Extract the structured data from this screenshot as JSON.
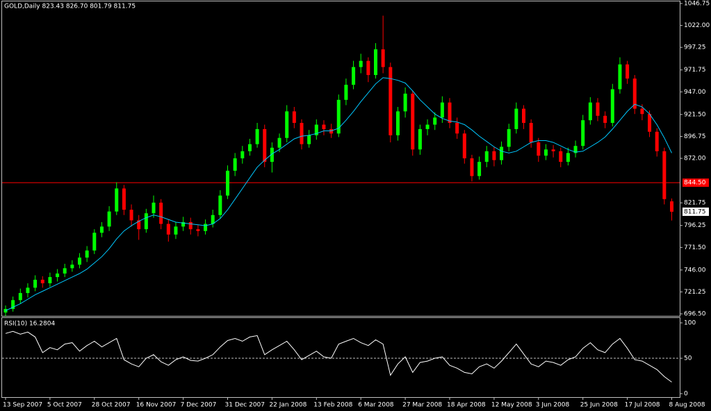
{
  "chart_data": [
    {
      "type": "candlestick",
      "title": "GOLD,Daily  823.43 826.70 801.79 811.75",
      "categories": [
        "13 Sep 2007",
        null,
        null,
        null,
        null,
        null,
        "5 Oct 2007",
        null,
        null,
        null,
        null,
        null,
        "28 Oct 2007",
        null,
        null,
        null,
        null,
        null,
        "16 Nov 2007",
        null,
        null,
        null,
        null,
        null,
        "7 Dec 2007",
        null,
        null,
        null,
        null,
        null,
        "31 Dec 2007",
        null,
        null,
        null,
        null,
        null,
        "22 Jan 2008",
        null,
        null,
        null,
        null,
        null,
        "13 Feb 2008",
        null,
        null,
        null,
        null,
        null,
        "6 Mar 2008",
        null,
        null,
        null,
        null,
        null,
        "27 Mar 2008",
        null,
        null,
        null,
        null,
        null,
        "18 Apr 2008",
        null,
        null,
        null,
        null,
        null,
        "12 May 2008",
        null,
        null,
        null,
        null,
        null,
        "3 Jun 2008",
        null,
        null,
        null,
        null,
        null,
        "25 Jun 2008",
        null,
        null,
        null,
        null,
        null,
        "17 Jul 2008",
        null,
        null,
        null,
        null,
        null,
        "8 Aug 2008"
      ],
      "open": [
        698,
        702,
        712,
        720,
        726,
        735,
        731,
        738,
        742,
        748,
        752,
        760,
        768,
        788,
        795,
        812,
        838,
        814,
        802,
        792,
        810,
        822,
        798,
        786,
        795,
        800,
        792,
        790,
        798,
        808,
        830,
        858,
        872,
        880,
        888,
        905,
        868,
        884,
        895,
        925,
        912,
        888,
        898,
        910,
        905,
        900,
        938,
        955,
        975,
        982,
        966,
        995,
        975,
        898,
        925,
        945,
        882,
        905,
        910,
        918,
        935,
        912,
        900,
        872,
        852,
        868,
        880,
        870,
        885,
        905,
        928,
        912,
        890,
        875,
        882,
        880,
        868,
        878,
        886,
        915,
        935,
        920,
        912,
        950,
        978,
        962,
        928,
        922,
        902,
        880,
        823.43
      ],
      "high": [
        706,
        716,
        725,
        731,
        740,
        739,
        743,
        747,
        753,
        757,
        765,
        773,
        792,
        800,
        818,
        845,
        842,
        820,
        808,
        815,
        830,
        826,
        803,
        800,
        806,
        805,
        797,
        803,
        814,
        836,
        864,
        878,
        886,
        894,
        912,
        910,
        890,
        900,
        932,
        930,
        916,
        904,
        916,
        915,
        911,
        944,
        962,
        982,
        990,
        986,
        1002,
        1033,
        980,
        930,
        952,
        948,
        910,
        916,
        924,
        942,
        940,
        918,
        904,
        876,
        874,
        886,
        885,
        891,
        911,
        935,
        932,
        916,
        895,
        888,
        887,
        884,
        884,
        892,
        921,
        941,
        940,
        925,
        956,
        986,
        982,
        966,
        933,
        926,
        906,
        884,
        826.7
      ],
      "low": [
        694,
        699,
        708,
        715,
        722,
        726,
        727,
        733,
        738,
        744,
        748,
        755,
        764,
        783,
        790,
        808,
        808,
        795,
        780,
        788,
        805,
        792,
        778,
        781,
        790,
        786,
        784,
        786,
        794,
        804,
        826,
        852,
        866,
        875,
        884,
        862,
        856,
        879,
        890,
        906,
        882,
        884,
        893,
        898,
        895,
        896,
        932,
        950,
        968,
        958,
        962,
        968,
        890,
        892,
        918,
        875,
        876,
        898,
        904,
        912,
        906,
        894,
        866,
        846,
        848,
        862,
        863,
        865,
        880,
        900,
        905,
        884,
        868,
        870,
        873,
        862,
        864,
        873,
        882,
        910,
        914,
        906,
        908,
        945,
        956,
        922,
        915,
        896,
        874,
        820,
        801.79
      ],
      "close": [
        702,
        712,
        720,
        726,
        735,
        731,
        738,
        742,
        748,
        752,
        760,
        768,
        788,
        795,
        812,
        838,
        814,
        802,
        792,
        810,
        822,
        798,
        786,
        795,
        800,
        792,
        790,
        798,
        808,
        830,
        858,
        872,
        880,
        888,
        905,
        868,
        884,
        895,
        925,
        912,
        888,
        898,
        910,
        905,
        900,
        938,
        955,
        975,
        982,
        966,
        995,
        975,
        898,
        925,
        945,
        882,
        905,
        910,
        918,
        935,
        912,
        900,
        872,
        852,
        868,
        880,
        870,
        885,
        905,
        928,
        912,
        890,
        875,
        882,
        880,
        868,
        878,
        886,
        915,
        935,
        920,
        912,
        950,
        978,
        962,
        928,
        922,
        902,
        880,
        826,
        811.75
      ],
      "up_color": "#00ff00",
      "down_color": "#ff0000",
      "overlay_values": [
        700,
        704,
        708,
        713,
        718,
        722,
        726,
        730,
        734,
        738,
        742,
        747,
        754,
        761,
        770,
        781,
        790,
        796,
        801,
        805,
        808,
        806,
        803,
        800,
        799,
        798,
        797,
        796,
        798,
        804,
        814,
        826,
        838,
        850,
        862,
        870,
        877,
        882,
        888,
        894,
        897,
        898,
        900,
        903,
        903,
        906,
        915,
        925,
        936,
        946,
        956,
        963,
        962,
        960,
        957,
        948,
        938,
        930,
        922,
        917,
        914,
        913,
        910,
        904,
        897,
        891,
        885,
        880,
        878,
        880,
        885,
        890,
        892,
        892,
        890,
        886,
        882,
        879,
        880,
        885,
        890,
        896,
        905,
        915,
        925,
        933,
        930,
        922,
        910,
        895,
        878
      ],
      "overlay_color": "#00c8ff",
      "hline": {
        "value": 844.5,
        "label": "844.50",
        "color": "#ff0000"
      },
      "last_label": "811.75",
      "ylim": [
        694.2,
        1049.1
      ],
      "yticks": [
        {
          "value": 1046.75,
          "label": "1046.75"
        },
        {
          "value": 1022,
          "label": "1022.00"
        },
        {
          "value": 997.25,
          "label": "997.25"
        },
        {
          "value": 971.75,
          "label": "971.75"
        },
        {
          "value": 947,
          "label": "947.00"
        },
        {
          "value": 921.5,
          "label": "921.50"
        },
        {
          "value": 896.75,
          "label": "896.75"
        },
        {
          "value": 872,
          "label": "872.00"
        },
        {
          "value": 821.75,
          "label": "821.75"
        },
        {
          "value": 796.25,
          "label": "796.25"
        },
        {
          "value": 771.5,
          "label": "771.50"
        },
        {
          "value": 746,
          "label": "746.00"
        },
        {
          "value": 721.25,
          "label": "721.25"
        },
        {
          "value": 696.5,
          "label": "696.50"
        }
      ]
    },
    {
      "type": "line",
      "title": "RSI(10) 16.2804",
      "color": "#ffffff",
      "values": [
        85,
        88,
        84,
        87,
        80,
        58,
        65,
        62,
        70,
        72,
        60,
        68,
        74,
        66,
        72,
        78,
        48,
        42,
        38,
        50,
        55,
        45,
        40,
        48,
        52,
        47,
        46,
        50,
        55,
        66,
        75,
        78,
        74,
        80,
        82,
        55,
        62,
        68,
        74,
        62,
        48,
        54,
        60,
        52,
        50,
        70,
        74,
        78,
        72,
        68,
        76,
        70,
        26,
        42,
        52,
        30,
        44,
        46,
        50,
        52,
        40,
        36,
        30,
        28,
        38,
        42,
        36,
        46,
        58,
        70,
        56,
        42,
        38,
        46,
        44,
        40,
        48,
        52,
        64,
        72,
        62,
        58,
        70,
        78,
        64,
        48,
        46,
        40,
        34,
        24,
        16.2804
      ],
      "level": 50,
      "ylim": [
        -4.9,
        106.9
      ],
      "yticks": [
        100,
        50,
        0
      ]
    }
  ]
}
